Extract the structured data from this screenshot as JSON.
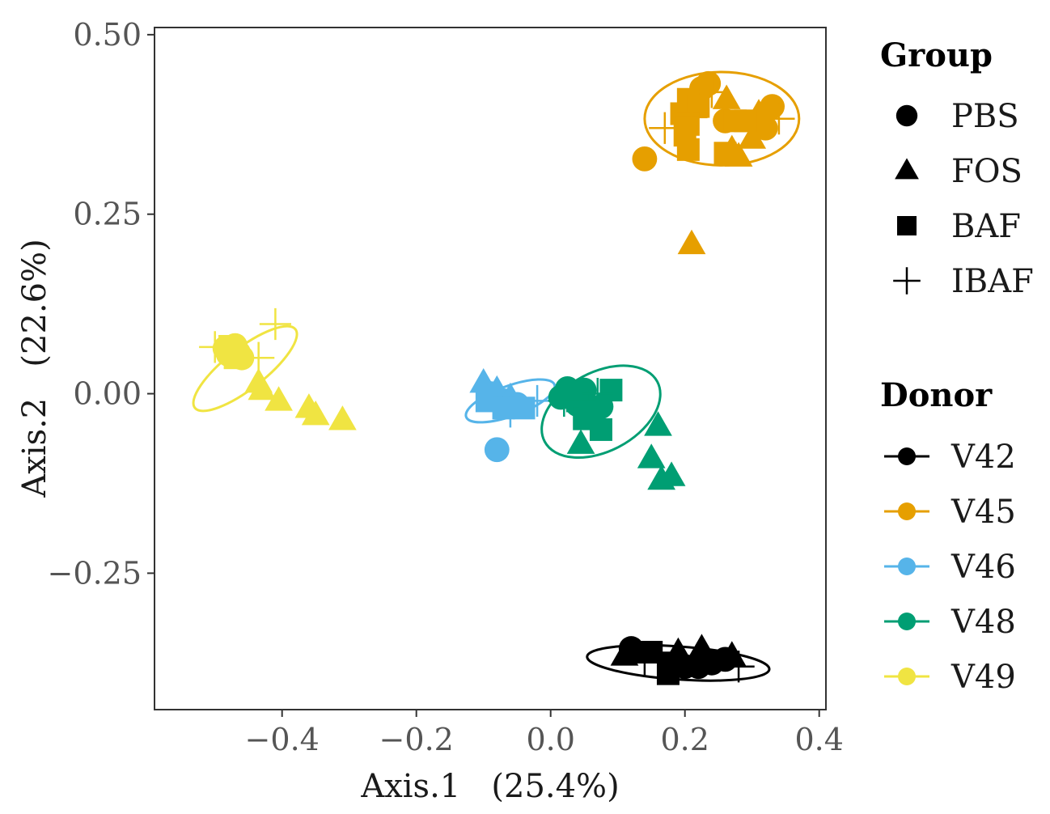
{
  "chart_data": {
    "type": "scatter",
    "xlabel": "Axis.1   (25.4%)",
    "ylabel": "Axis.2   (22.6%)",
    "xlim": [
      -0.59,
      0.41
    ],
    "ylim": [
      -0.44,
      0.51
    ],
    "xticks": [
      -0.4,
      -0.2,
      0.0,
      0.2,
      0.4
    ],
    "xtick_labels": [
      "−0.4",
      "−0.2",
      "0.0",
      "0.2",
      "0.4"
    ],
    "yticks": [
      0.5,
      0.25,
      0.0,
      -0.25
    ],
    "ytick_labels": [
      "0.50",
      "0.25",
      "0.00",
      "−0.25"
    ],
    "grid": false,
    "legend_position": "right",
    "group_legend": {
      "title": "Group",
      "items": [
        {
          "label": "PBS",
          "shape": "circle"
        },
        {
          "label": "FOS",
          "shape": "triangle"
        },
        {
          "label": "BAF",
          "shape": "square"
        },
        {
          "label": "IBAF",
          "shape": "plus"
        }
      ]
    },
    "donor_legend": {
      "title": "Donor",
      "items": [
        {
          "label": "V42",
          "color": "#000000"
        },
        {
          "label": "V45",
          "color": "#E69F00"
        },
        {
          "label": "V46",
          "color": "#56B4E9"
        },
        {
          "label": "V48",
          "color": "#009E73"
        },
        {
          "label": "V49",
          "color": "#F0E442"
        }
      ]
    },
    "series": [
      {
        "donor": "V45",
        "color": "#E69F00",
        "ellipse": {
          "cx": 0.255,
          "cy": 0.383,
          "rx": 0.115,
          "ry": 0.065,
          "angle": 0
        },
        "points": [
          {
            "x": 0.235,
            "y": 0.432,
            "shape": "circle"
          },
          {
            "x": 0.26,
            "y": 0.38,
            "shape": "circle"
          },
          {
            "x": 0.33,
            "y": 0.4,
            "shape": "circle"
          },
          {
            "x": 0.32,
            "y": 0.37,
            "shape": "circle"
          },
          {
            "x": 0.14,
            "y": 0.327,
            "shape": "circle"
          },
          {
            "x": 0.225,
            "y": 0.425,
            "shape": "circle"
          },
          {
            "x": 0.262,
            "y": 0.41,
            "shape": "triangle"
          },
          {
            "x": 0.31,
            "y": 0.39,
            "shape": "triangle"
          },
          {
            "x": 0.27,
            "y": 0.34,
            "shape": "triangle"
          },
          {
            "x": 0.28,
            "y": 0.33,
            "shape": "triangle"
          },
          {
            "x": 0.3,
            "y": 0.355,
            "shape": "triangle"
          },
          {
            "x": 0.21,
            "y": 0.208,
            "shape": "triangle"
          },
          {
            "x": 0.205,
            "y": 0.41,
            "shape": "square"
          },
          {
            "x": 0.195,
            "y": 0.39,
            "shape": "square"
          },
          {
            "x": 0.22,
            "y": 0.4,
            "shape": "square"
          },
          {
            "x": 0.205,
            "y": 0.375,
            "shape": "square"
          },
          {
            "x": 0.2,
            "y": 0.36,
            "shape": "square"
          },
          {
            "x": 0.205,
            "y": 0.34,
            "shape": "square"
          },
          {
            "x": 0.275,
            "y": 0.38,
            "shape": "square"
          },
          {
            "x": 0.29,
            "y": 0.38,
            "shape": "square"
          },
          {
            "x": 0.26,
            "y": 0.335,
            "shape": "square"
          },
          {
            "x": 0.17,
            "y": 0.37,
            "shape": "plus"
          },
          {
            "x": 0.21,
            "y": 0.385,
            "shape": "plus"
          },
          {
            "x": 0.34,
            "y": 0.383,
            "shape": "plus"
          },
          {
            "x": 0.24,
            "y": 0.42,
            "shape": "plus"
          }
        ]
      },
      {
        "donor": "V49",
        "color": "#F0E442",
        "ellipse": {
          "cx": -0.455,
          "cy": 0.035,
          "rx": 0.095,
          "ry": 0.028,
          "angle": 38
        },
        "points": [
          {
            "x": -0.475,
            "y": 0.062,
            "shape": "circle"
          },
          {
            "x": -0.465,
            "y": 0.057,
            "shape": "circle"
          },
          {
            "x": -0.48,
            "y": 0.055,
            "shape": "circle"
          },
          {
            "x": -0.47,
            "y": 0.067,
            "shape": "circle"
          },
          {
            "x": -0.485,
            "y": 0.063,
            "shape": "circle"
          },
          {
            "x": -0.46,
            "y": 0.05,
            "shape": "circle"
          },
          {
            "x": -0.435,
            "y": 0.015,
            "shape": "triangle"
          },
          {
            "x": -0.43,
            "y": 0.005,
            "shape": "triangle"
          },
          {
            "x": -0.405,
            "y": -0.01,
            "shape": "triangle"
          },
          {
            "x": -0.36,
            "y": -0.02,
            "shape": "triangle"
          },
          {
            "x": -0.35,
            "y": -0.03,
            "shape": "triangle"
          },
          {
            "x": -0.31,
            "y": -0.037,
            "shape": "triangle"
          },
          {
            "x": -0.47,
            "y": 0.05,
            "shape": "square"
          },
          {
            "x": -0.478,
            "y": 0.066,
            "shape": "square"
          },
          {
            "x": -0.41,
            "y": 0.097,
            "shape": "plus"
          },
          {
            "x": -0.5,
            "y": 0.065,
            "shape": "plus"
          },
          {
            "x": -0.435,
            "y": 0.05,
            "shape": "plus"
          }
        ]
      },
      {
        "donor": "V46",
        "color": "#56B4E9",
        "ellipse": {
          "cx": -0.06,
          "cy": -0.01,
          "rx": 0.07,
          "ry": 0.021,
          "angle": 20
        },
        "points": [
          {
            "x": -0.08,
            "y": -0.078,
            "shape": "circle"
          },
          {
            "x": -0.09,
            "y": 0.0,
            "shape": "circle"
          },
          {
            "x": -0.07,
            "y": -0.01,
            "shape": "circle"
          },
          {
            "x": -0.05,
            "y": -0.015,
            "shape": "circle"
          },
          {
            "x": -0.1,
            "y": 0.015,
            "shape": "triangle"
          },
          {
            "x": -0.08,
            "y": 0.005,
            "shape": "triangle"
          },
          {
            "x": -0.06,
            "y": -0.005,
            "shape": "triangle"
          },
          {
            "x": -0.095,
            "y": -0.01,
            "shape": "square"
          },
          {
            "x": -0.07,
            "y": -0.02,
            "shape": "square"
          },
          {
            "x": -0.04,
            "y": -0.02,
            "shape": "square"
          },
          {
            "x": -0.06,
            "y": -0.025,
            "shape": "plus"
          },
          {
            "x": -0.02,
            "y": -0.01,
            "shape": "plus"
          }
        ]
      },
      {
        "donor": "V48",
        "color": "#009E73",
        "ellipse": {
          "cx": 0.075,
          "cy": -0.025,
          "rx": 0.095,
          "ry": 0.055,
          "angle": 28
        },
        "points": [
          {
            "x": 0.025,
            "y": 0.007,
            "shape": "circle"
          },
          {
            "x": 0.05,
            "y": 0.005,
            "shape": "circle"
          },
          {
            "x": 0.075,
            "y": -0.018,
            "shape": "circle"
          },
          {
            "x": 0.015,
            "y": -0.005,
            "shape": "circle"
          },
          {
            "x": 0.04,
            "y": -0.015,
            "shape": "circle"
          },
          {
            "x": 0.16,
            "y": -0.045,
            "shape": "triangle"
          },
          {
            "x": 0.045,
            "y": -0.07,
            "shape": "triangle"
          },
          {
            "x": 0.15,
            "y": -0.09,
            "shape": "triangle"
          },
          {
            "x": 0.165,
            "y": -0.12,
            "shape": "triangle"
          },
          {
            "x": 0.18,
            "y": -0.115,
            "shape": "triangle"
          },
          {
            "x": 0.09,
            "y": 0.005,
            "shape": "square"
          },
          {
            "x": 0.04,
            "y": -0.01,
            "shape": "square"
          },
          {
            "x": 0.05,
            "y": -0.035,
            "shape": "square"
          },
          {
            "x": 0.075,
            "y": -0.05,
            "shape": "square"
          },
          {
            "x": 0.06,
            "y": -0.025,
            "shape": "square"
          },
          {
            "x": 0.07,
            "y": 0.0,
            "shape": "plus"
          },
          {
            "x": 0.02,
            "y": -0.01,
            "shape": "plus"
          }
        ]
      },
      {
        "donor": "V42",
        "color": "#000000",
        "ellipse": {
          "cx": 0.19,
          "cy": -0.375,
          "rx": 0.136,
          "ry": 0.023,
          "angle": -4
        },
        "points": [
          {
            "x": 0.2,
            "y": -0.38,
            "shape": "circle"
          },
          {
            "x": 0.22,
            "y": -0.38,
            "shape": "circle"
          },
          {
            "x": 0.24,
            "y": -0.375,
            "shape": "circle"
          },
          {
            "x": 0.12,
            "y": -0.355,
            "shape": "circle"
          },
          {
            "x": 0.26,
            "y": -0.37,
            "shape": "circle"
          },
          {
            "x": 0.225,
            "y": -0.355,
            "shape": "triangle"
          },
          {
            "x": 0.27,
            "y": -0.365,
            "shape": "triangle"
          },
          {
            "x": 0.11,
            "y": -0.365,
            "shape": "triangle"
          },
          {
            "x": 0.19,
            "y": -0.36,
            "shape": "triangle"
          },
          {
            "x": 0.175,
            "y": -0.39,
            "shape": "square"
          },
          {
            "x": 0.15,
            "y": -0.36,
            "shape": "square"
          },
          {
            "x": 0.18,
            "y": -0.375,
            "shape": "square"
          },
          {
            "x": 0.135,
            "y": -0.36,
            "shape": "square"
          },
          {
            "x": 0.14,
            "y": -0.37,
            "shape": "plus"
          },
          {
            "x": 0.28,
            "y": -0.38,
            "shape": "plus"
          },
          {
            "x": 0.19,
            "y": -0.375,
            "shape": "plus"
          }
        ]
      }
    ]
  }
}
